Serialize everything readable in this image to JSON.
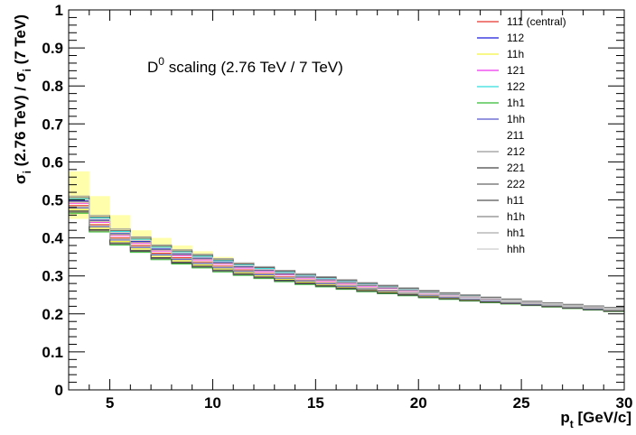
{
  "chart_data": {
    "type": "line",
    "step": true,
    "annotation": "D0 scaling (2.76 TeV / 7 TeV)",
    "annotation_parts": {
      "pre": "D",
      "sup": "0",
      "post": " scaling (2.76 TeV / 7 TeV)"
    },
    "xlabel": "p_t [GeV/c]",
    "xlabel_parts": {
      "main": "p",
      "sub": "t",
      "rest": " [GeV/c]"
    },
    "ylabel": "σ_i (2.76 TeV) / σ_i (7 TeV)",
    "ylabel_parts": {
      "s1": "σ",
      "sub1": "i",
      "mid": " (2.76 TeV) / ",
      "s2": "σ",
      "sub2": "i",
      "end": " (7 TeV)"
    },
    "xlim": [
      3,
      30
    ],
    "ylim": [
      0,
      1
    ],
    "x_ticks": [
      5,
      10,
      15,
      20,
      25,
      30
    ],
    "x_tick_labels": [
      "5",
      "10",
      "15",
      "20",
      "25",
      "30"
    ],
    "y_ticks": [
      0,
      0.1,
      0.2,
      0.3,
      0.4,
      0.5,
      0.6,
      0.7,
      0.8,
      0.9,
      1
    ],
    "y_tick_labels": [
      "0",
      "0.1",
      "0.2",
      "0.3",
      "0.4",
      "0.5",
      "0.6",
      "0.7",
      "0.8",
      "0.9",
      "1"
    ],
    "grid": false,
    "legend_position": "top-right",
    "bin_edges": [
      3,
      4,
      5,
      6,
      7,
      8,
      9,
      10,
      11,
      12,
      13,
      14,
      15,
      16,
      17,
      18,
      19,
      20,
      21,
      22,
      23,
      24,
      25,
      26,
      27,
      28,
      29,
      30
    ],
    "band": {
      "color": "#ffff66",
      "upper": [
        0.575,
        0.51,
        0.46,
        0.42,
        0.4,
        0.38,
        0.365,
        0.35,
        0.335,
        0.32,
        0.31,
        0.3,
        0.29,
        0.282,
        0.274,
        0.266,
        0.26,
        0.254,
        0.248,
        0.243,
        0.238,
        0.234,
        0.23,
        0.226,
        0.222,
        0.218,
        0.215
      ],
      "lower": [
        0.45,
        0.415,
        0.385,
        0.365,
        0.35,
        0.337,
        0.326,
        0.316,
        0.306,
        0.297,
        0.289,
        0.281,
        0.274,
        0.267,
        0.261,
        0.255,
        0.249,
        0.244,
        0.239,
        0.234,
        0.229,
        0.225,
        0.221,
        0.217,
        0.213,
        0.209,
        0.205
      ]
    },
    "central": [
      0.485,
      0.435,
      0.4,
      0.38,
      0.36,
      0.348,
      0.337,
      0.326,
      0.316,
      0.307,
      0.298,
      0.29,
      0.283,
      0.276,
      0.269,
      0.263,
      0.257,
      0.251,
      0.246,
      0.241,
      0.236,
      0.232,
      0.227,
      0.223,
      0.219,
      0.215,
      0.211
    ],
    "series": [
      {
        "name": "111 (central)",
        "color": "#e8352e",
        "offset": 0.0
      },
      {
        "name": "112",
        "color": "#1a1adb",
        "offset": 0.012
      },
      {
        "name": "11h",
        "color": "#f4f442",
        "offset": -0.01
      },
      {
        "name": "121",
        "color": "#ee33ee",
        "offset": 0.006
      },
      {
        "name": "122",
        "color": "#33dddd",
        "offset": 0.018
      },
      {
        "name": "1h1",
        "color": "#33bb33",
        "offset": -0.02
      },
      {
        "name": "1hh",
        "color": "#5555cc",
        "offset": -0.006
      },
      {
        "name": "211",
        "color": "#ffffff",
        "offset": 0.003
      },
      {
        "name": "212",
        "color": "#999999",
        "offset": 0.025
      },
      {
        "name": "221",
        "color": "#444444",
        "offset": -0.014
      },
      {
        "name": "222",
        "color": "#666666",
        "offset": 0.021
      },
      {
        "name": "h11",
        "color": "#555555",
        "offset": -0.017
      },
      {
        "name": "h1h",
        "color": "#888888",
        "offset": 0.01
      },
      {
        "name": "hh1",
        "color": "#aaaaaa",
        "offset": -0.003
      },
      {
        "name": "hhh",
        "color": "#cccccc",
        "offset": 0.015
      }
    ]
  }
}
